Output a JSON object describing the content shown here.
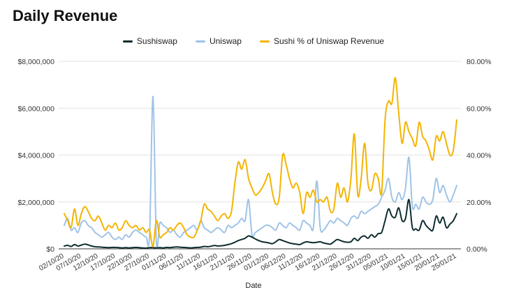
{
  "chart_data": {
    "type": "line",
    "title": "Daily Revenue",
    "xlabel": "Date",
    "ylabel": "",
    "y2label": "",
    "ylim": [
      0,
      8000000
    ],
    "y2lim": [
      0,
      0.8
    ],
    "yticks": [
      "$0",
      "$2,000,000",
      "$4,000,000",
      "$6,000,000",
      "$8,000,000"
    ],
    "y2ticks": [
      "0.00%",
      "20.00%",
      "40.00%",
      "60.00%",
      "80.00%"
    ],
    "x_ticks": [
      "02/10/20",
      "07/10/20",
      "12/10/20",
      "17/10/20",
      "22/10/20",
      "27/10/20",
      "01/11/20",
      "06/11/20",
      "11/11/20",
      "16/11/20",
      "21/11/20",
      "26/11/20",
      "01/12/20",
      "06/12/20",
      "11/12/20",
      "16/12/20",
      "21/12/20",
      "26/12/20",
      "31/12/20",
      "05/01/21",
      "10/01/21",
      "15/01/21",
      "20/01/21",
      "25/01/21"
    ],
    "grid": true,
    "legend_position": "top",
    "series": [
      {
        "name": "Sushiswap",
        "axis": "left",
        "color": "#0d2b2e",
        "values": [
          0.12,
          0.15,
          0.1,
          0.18,
          0.12,
          0.16,
          0.2,
          0.17,
          0.12,
          0.09,
          0.08,
          0.07,
          0.06,
          0.05,
          0.06,
          0.06,
          0.05,
          0.04,
          0.05,
          0.04,
          0.05,
          0.06,
          0.05,
          0.04,
          0.03,
          0.05,
          0.05,
          0.04,
          0.05,
          0.04,
          0.06,
          0.05,
          0.07,
          0.08,
          0.07,
          0.06,
          0.05,
          0.04,
          0.05,
          0.06,
          0.07,
          0.1,
          0.09,
          0.11,
          0.14,
          0.12,
          0.13,
          0.15,
          0.18,
          0.22,
          0.28,
          0.35,
          0.4,
          0.45,
          0.55,
          0.5,
          0.42,
          0.35,
          0.3,
          0.28,
          0.25,
          0.22,
          0.3,
          0.4,
          0.35,
          0.3,
          0.25,
          0.22,
          0.2,
          0.18,
          0.25,
          0.3,
          0.28,
          0.26,
          0.28,
          0.3,
          0.25,
          0.22,
          0.2,
          0.3,
          0.4,
          0.35,
          0.3,
          0.28,
          0.3,
          0.45,
          0.35,
          0.5,
          0.55,
          0.45,
          0.6,
          0.5,
          0.65,
          0.7,
          1.2,
          1.7,
          1.4,
          1.35,
          1.75,
          1.2,
          1.3,
          2.1,
          0.9,
          0.85,
          0.8,
          1.2,
          1.0,
          0.85,
          0.8,
          1.4,
          1.1,
          1.35,
          0.9,
          1.05,
          1.2,
          1.5
        ]
      },
      {
        "name": "Uniswap",
        "axis": "left",
        "color": "#9fc3e7",
        "values": [
          1.0,
          1.3,
          0.8,
          0.9,
          0.7,
          1.1,
          1.2,
          1.0,
          0.9,
          0.7,
          0.6,
          0.5,
          0.6,
          0.7,
          0.5,
          0.4,
          0.5,
          0.4,
          0.6,
          0.5,
          0.7,
          0.8,
          0.7,
          0.6,
          0.5,
          0.6,
          6.5,
          0.3,
          1.1,
          1.0,
          0.9,
          0.7,
          0.8,
          0.6,
          0.5,
          0.7,
          0.8,
          0.9,
          1.0,
          0.8,
          1.2,
          0.9,
          0.8,
          0.7,
          0.8,
          0.9,
          0.8,
          0.7,
          1.0,
          0.9,
          1.0,
          1.1,
          1.3,
          1.2,
          2.1,
          0.6,
          0.7,
          0.8,
          0.9,
          1.0,
          1.0,
          0.9,
          0.8,
          1.1,
          1.0,
          0.9,
          1.1,
          1.0,
          0.9,
          0.8,
          1.2,
          1.1,
          1.0,
          0.9,
          2.9,
          0.9,
          0.8,
          1.0,
          1.2,
          1.1,
          1.3,
          1.2,
          1.1,
          1.0,
          1.3,
          1.4,
          1.3,
          1.6,
          1.5,
          1.6,
          1.7,
          1.8,
          1.9,
          2.2,
          2.5,
          3.0,
          2.2,
          2.0,
          2.4,
          2.1,
          2.6,
          3.9,
          1.8,
          1.9,
          1.7,
          2.2,
          2.0,
          1.9,
          2.1,
          3.0,
          2.4,
          2.7,
          2.3,
          2.0,
          2.3,
          2.7
        ]
      },
      {
        "name": "Sushi % of Uniswap Revenue",
        "axis": "right",
        "color": "#f4b400",
        "values": [
          0.15,
          0.12,
          0.09,
          0.17,
          0.1,
          0.15,
          0.18,
          0.16,
          0.13,
          0.12,
          0.14,
          0.11,
          0.08,
          0.1,
          0.09,
          0.11,
          0.08,
          0.09,
          0.12,
          0.1,
          0.09,
          0.1,
          0.08,
          0.09,
          0.07,
          0.08,
          0.01,
          0.12,
          0.05,
          0.06,
          0.07,
          0.09,
          0.08,
          0.1,
          0.11,
          0.09,
          0.06,
          0.05,
          0.05,
          0.08,
          0.12,
          0.19,
          0.17,
          0.16,
          0.14,
          0.12,
          0.14,
          0.15,
          0.13,
          0.16,
          0.28,
          0.37,
          0.34,
          0.38,
          0.3,
          0.26,
          0.23,
          0.24,
          0.26,
          0.29,
          0.32,
          0.24,
          0.19,
          0.22,
          0.4,
          0.36,
          0.3,
          0.26,
          0.28,
          0.24,
          0.15,
          0.24,
          0.22,
          0.25,
          0.2,
          0.21,
          0.2,
          0.22,
          0.16,
          0.17,
          0.28,
          0.22,
          0.26,
          0.2,
          0.3,
          0.49,
          0.23,
          0.3,
          0.45,
          0.28,
          0.25,
          0.32,
          0.3,
          0.24,
          0.55,
          0.63,
          0.62,
          0.73,
          0.58,
          0.45,
          0.54,
          0.5,
          0.47,
          0.44,
          0.54,
          0.48,
          0.46,
          0.42,
          0.38,
          0.48,
          0.46,
          0.5,
          0.45,
          0.4,
          0.42,
          0.55
        ]
      }
    ]
  }
}
